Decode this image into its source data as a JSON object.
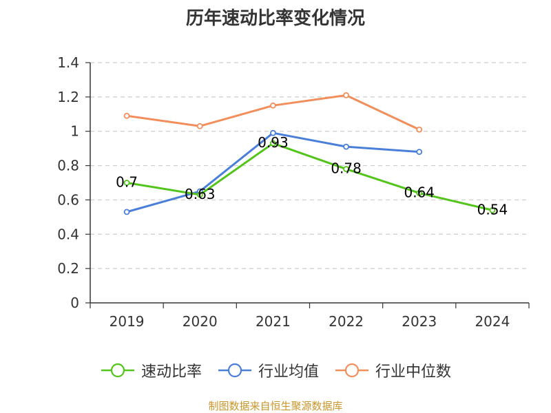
{
  "title": "历年速动比率变化情况",
  "source": "制图数据来自恒生聚源数据库",
  "colors": {
    "axis": "#333333",
    "grid": "#cccccc"
  },
  "chart_data": {
    "type": "line",
    "title": "历年速动比率变化情况",
    "categories": [
      "2019",
      "2020",
      "2021",
      "2022",
      "2023",
      "2024"
    ],
    "ylim": [
      0,
      1.4
    ],
    "yticks": [
      "0",
      "0.2",
      "0.4",
      "0.6",
      "0.8",
      "1",
      "1.2",
      "1.4"
    ],
    "ytick_values": [
      0,
      0.2,
      0.4,
      0.6,
      0.8,
      1.0,
      1.2,
      1.4
    ],
    "grid": true,
    "legend_position": "bottom",
    "series": [
      {
        "name": "速动比率",
        "color": "#52c41a",
        "values": [
          0.7,
          0.63,
          0.93,
          0.78,
          0.64,
          0.54
        ],
        "labels": [
          "0.7",
          "0.63",
          "0.93",
          "0.78",
          "0.64",
          "0.54"
        ],
        "show_labels": true
      },
      {
        "name": "行业均值",
        "color": "#4a7fd9",
        "values": [
          0.53,
          0.65,
          0.99,
          0.91,
          0.88,
          null
        ],
        "show_labels": false
      },
      {
        "name": "行业中位数",
        "color": "#f28e5c",
        "values": [
          1.09,
          1.03,
          1.15,
          1.21,
          1.01,
          null
        ],
        "show_labels": false
      }
    ]
  }
}
